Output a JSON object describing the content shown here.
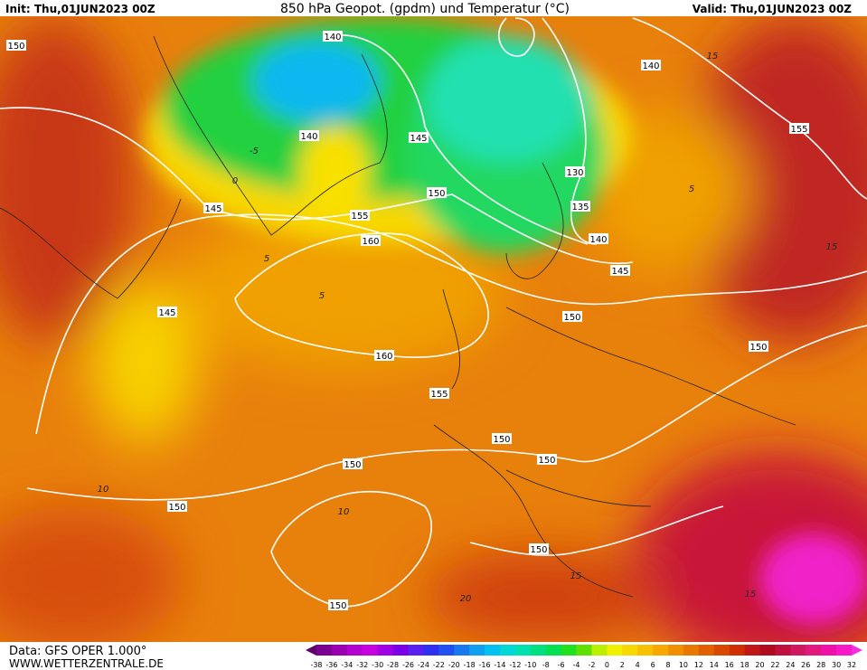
{
  "header": {
    "init": "Init: Thu,01JUN2023 00Z",
    "title": "850 hPa Geopot. (gpdm) und Temperatur (°C)",
    "valid": "Valid: Thu,01JUN2023 00Z"
  },
  "geopotential_labels": [
    "150",
    "140",
    "140",
    "155",
    "140",
    "145",
    "130",
    "150",
    "145",
    "135",
    "155",
    "160",
    "140",
    "145",
    "150",
    "145",
    "150",
    "160",
    "155",
    "150",
    "150",
    "150",
    "150",
    "150",
    "150"
  ],
  "temperature_labels": [
    "15",
    "5",
    "5",
    "5",
    "10",
    "10",
    "15",
    "20",
    "15",
    "0",
    "-5",
    "15"
  ],
  "footer": {
    "data": "Data: GFS OPER 1.000°",
    "site": "WWW.WETTERZENTRALE.DE"
  },
  "colorbar": {
    "ticks": [
      -38,
      -36,
      -34,
      -32,
      -30,
      -28,
      -26,
      -24,
      -22,
      -20,
      -18,
      -16,
      -14,
      -12,
      -10,
      -8,
      -6,
      -4,
      -2,
      0,
      2,
      4,
      6,
      8,
      10,
      12,
      14,
      16,
      18,
      20,
      22,
      24,
      26,
      28,
      30,
      32
    ],
    "colors": [
      "#5a0068",
      "#7a0090",
      "#9a00b0",
      "#b400d0",
      "#c800e0",
      "#a000e6",
      "#7a00e8",
      "#5a20f0",
      "#3030f0",
      "#2050f0",
      "#1878f0",
      "#10a0f0",
      "#00c0f0",
      "#00d8d8",
      "#00e0b0",
      "#00e080",
      "#00e050",
      "#20e020",
      "#60e000",
      "#b8f000",
      "#f0f000",
      "#f8d800",
      "#f8c000",
      "#f8a800",
      "#f09000",
      "#e87800",
      "#e06000",
      "#d84800",
      "#d03000",
      "#c01818",
      "#b00c20",
      "#c01040",
      "#d01860",
      "#e01880",
      "#f010a8",
      "#f818c8",
      "#f030e0"
    ]
  }
}
